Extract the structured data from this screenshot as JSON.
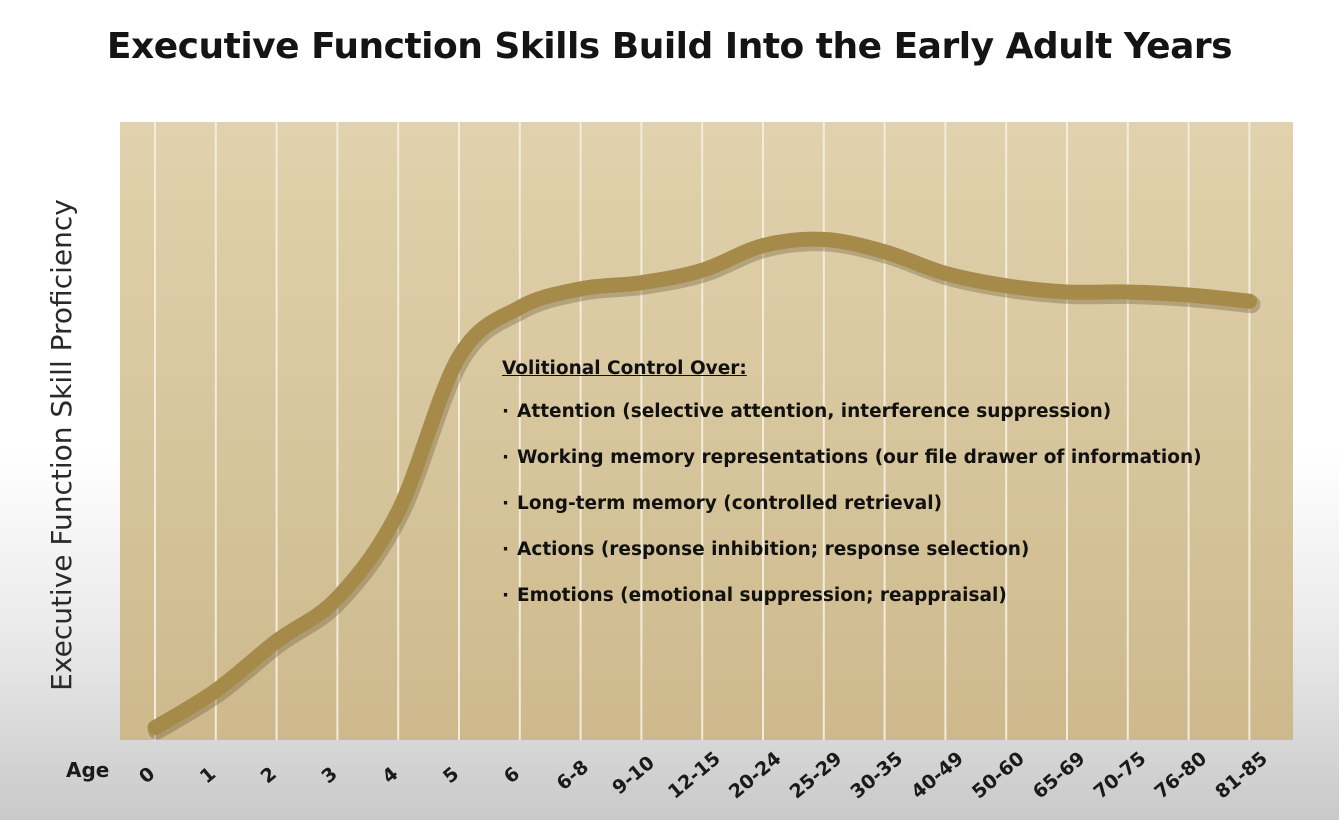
{
  "chart_data": {
    "type": "line",
    "title": "Executive Function Skills Build Into the Early Adult Years",
    "ylabel": "Executive Function Skill Proficiency",
    "xlabel": "Age",
    "categories": [
      "0",
      "1",
      "2",
      "3",
      "4",
      "5",
      "6",
      "6-8",
      "9-10",
      "12-15",
      "20-24",
      "25-29",
      "30-35",
      "40-49",
      "50-60",
      "65-69",
      "70-75",
      "76-80",
      "81-85"
    ],
    "series": [
      {
        "values": [
          2,
          8,
          16,
          23,
          37,
          62,
          70,
          73,
          74,
          76,
          80,
          81,
          79,
          75.5,
          73.5,
          72.5,
          72.5,
          72,
          71
        ]
      }
    ],
    "ylim": [
      0,
      100
    ],
    "grid": true,
    "colors": {
      "background": "#d9c8a2",
      "line": "#a58a4a",
      "grid": "#f3ecdc"
    }
  },
  "annotation": {
    "heading": "Volitional Control Over:",
    "items": [
      "Attention (selective attention, interference suppression)",
      "Working memory representations (our file drawer of information)",
      "Long-term memory (controlled retrieval)",
      "Actions (response inhibition; response selection)",
      "Emotions (emotional suppression; reappraisal)"
    ]
  }
}
